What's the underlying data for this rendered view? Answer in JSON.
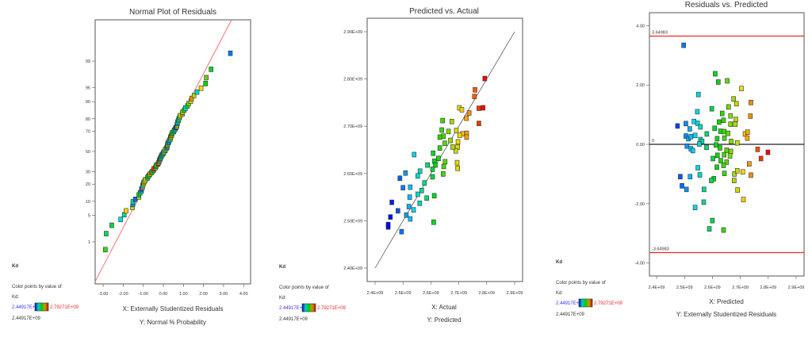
{
  "legend": {
    "heading": "Kd",
    "caption": "Color points by value of",
    "var": "Kd:",
    "min_label": "2.44917E+09",
    "max_label": "2.79271E+09",
    "current": "2.44917E+09",
    "min_value": 2449170000,
    "max_value": 2792710000,
    "colors": [
      "#0000ff",
      "#00ffff",
      "#00ff00",
      "#ffff00",
      "#ff0000"
    ]
  },
  "chart_data": [
    {
      "type": "scatter",
      "title": "Normal Plot of Residuals",
      "xlabel": "X: Externally Studentized Residuals",
      "ylabel": "Y: Normal % Probability",
      "xlim": [
        -3.2,
        4.2
      ],
      "x_ticks": [
        "-3.00",
        "-2.00",
        "-1.00",
        "0.00",
        "1.00",
        "2.00",
        "3.00",
        "4.00"
      ],
      "x_tick_values": [
        -3,
        -2,
        -1,
        0,
        1,
        2,
        3,
        4
      ],
      "y_ticks": [
        "1",
        "5",
        "10",
        "20",
        "30",
        "50",
        "70",
        "80",
        "90",
        "95",
        "99"
      ],
      "y_tick_values": [
        1,
        5,
        10,
        20,
        30,
        50,
        70,
        80,
        90,
        95,
        99
      ],
      "reference_line_color": "#ff6666",
      "points_note": "residuals of the Residuals vs. Predicted series, ranked"
    },
    {
      "type": "scatter",
      "title": "Predicted vs. Actual",
      "xlabel": "X: Actual",
      "ylabel": "Y: Predicted",
      "xlim": [
        2.4,
        2.9
      ],
      "ylim": [
        2.4,
        2.9
      ],
      "x_ticks": [
        "2.4E+09",
        "2.5E+09",
        "2.6E+09",
        "2.7E+09",
        "2.8E+09",
        "2.9E+09"
      ],
      "y_ticks": [
        "2.40E+09",
        "2.50E+09",
        "2.60E+09",
        "2.70E+09",
        "2.80E+09",
        "2.90E+09"
      ],
      "unit_scale": 1000000000,
      "points": [
        [
          2.793,
          2.801
        ],
        [
          2.758,
          2.777
        ],
        [
          2.756,
          2.763
        ],
        [
          2.787,
          2.739
        ],
        [
          2.772,
          2.738
        ],
        [
          2.772,
          2.706
        ],
        [
          2.702,
          2.739
        ],
        [
          2.711,
          2.735
        ],
        [
          2.737,
          2.728
        ],
        [
          2.727,
          2.717
        ],
        [
          2.728,
          2.685
        ],
        [
          2.728,
          2.677
        ],
        [
          2.713,
          2.684
        ],
        [
          2.703,
          2.681
        ],
        [
          2.691,
          2.691
        ],
        [
          2.697,
          2.667
        ],
        [
          2.696,
          2.656
        ],
        [
          2.689,
          2.648
        ],
        [
          2.694,
          2.623
        ],
        [
          2.696,
          2.611
        ],
        [
          2.675,
          2.71
        ],
        [
          2.642,
          2.712
        ],
        [
          2.639,
          2.692
        ],
        [
          2.663,
          2.689
        ],
        [
          2.645,
          2.679
        ],
        [
          2.632,
          2.677
        ],
        [
          2.67,
          2.67
        ],
        [
          2.65,
          2.664
        ],
        [
          2.678,
          2.656
        ],
        [
          2.632,
          2.654
        ],
        [
          2.608,
          2.643
        ],
        [
          2.627,
          2.632
        ],
        [
          2.613,
          2.626
        ],
        [
          2.651,
          2.625
        ],
        [
          2.588,
          2.618
        ],
        [
          2.616,
          2.618
        ],
        [
          2.606,
          2.609
        ],
        [
          2.646,
          2.615
        ],
        [
          2.644,
          2.599
        ],
        [
          2.606,
          2.593
        ],
        [
          2.54,
          2.64
        ],
        [
          2.561,
          2.605
        ],
        [
          2.553,
          2.595
        ],
        [
          2.509,
          2.601
        ],
        [
          2.489,
          2.59
        ],
        [
          2.5,
          2.57
        ],
        [
          2.526,
          2.571
        ],
        [
          2.577,
          2.58
        ],
        [
          2.524,
          2.55
        ],
        [
          2.553,
          2.556
        ],
        [
          2.567,
          2.564
        ],
        [
          2.585,
          2.548
        ],
        [
          2.612,
          2.553
        ],
        [
          2.56,
          2.537
        ],
        [
          2.521,
          2.53
        ],
        [
          2.538,
          2.523
        ],
        [
          2.512,
          2.512
        ],
        [
          2.526,
          2.504
        ],
        [
          2.482,
          2.521
        ],
        [
          2.46,
          2.539
        ],
        [
          2.455,
          2.508
        ],
        [
          2.447,
          2.492
        ],
        [
          2.447,
          2.487
        ],
        [
          2.495,
          2.477
        ],
        [
          2.61,
          2.497
        ]
      ]
    },
    {
      "type": "scatter",
      "title": "Residuals vs. Predicted",
      "xlabel": "X: Predicted",
      "ylabel": "Y: Externally Studentized Residuals",
      "xlim": [
        2.4,
        2.9
      ],
      "ylim": [
        -4,
        4
      ],
      "x_ticks": [
        "2.4E+09",
        "2.5E+09",
        "2.6E+09",
        "2.7E+09",
        "2.8E+09",
        "2.9E+09"
      ],
      "y_ticks": [
        "-4.00",
        "-2.00",
        "0.00",
        "2.00",
        "4.00"
      ],
      "y_tick_values": [
        -4,
        -2,
        0,
        2,
        4
      ],
      "limit_upper": 3.64983,
      "limit_upper_label": "3.64983",
      "limit_lower": -3.64983,
      "limit_lower_label": "-3.64983",
      "zero_label": "0",
      "limit_color": "#ff2222",
      "points": [
        [
          2.497,
          3.34
        ],
        [
          2.61,
          2.38
        ],
        [
          2.621,
          2.1
        ],
        [
          2.653,
          2.14
        ],
        [
          2.704,
          1.88
        ],
        [
          2.55,
          1.68
        ],
        [
          2.676,
          1.53
        ],
        [
          2.686,
          1.37
        ],
        [
          2.738,
          1.41
        ],
        [
          2.736,
          0.95
        ],
        [
          2.598,
          1.2
        ],
        [
          2.546,
          1.1
        ],
        [
          2.658,
          1.26
        ],
        [
          2.635,
          1.04
        ],
        [
          2.665,
          0.96
        ],
        [
          2.64,
          0.81
        ],
        [
          2.684,
          0.84
        ],
        [
          2.682,
          0.68
        ],
        [
          2.665,
          0.68
        ],
        [
          2.624,
          0.75
        ],
        [
          2.534,
          0.77
        ],
        [
          2.547,
          0.71
        ],
        [
          2.505,
          0.7
        ],
        [
          2.475,
          0.62
        ],
        [
          2.557,
          0.59
        ],
        [
          2.519,
          0.52
        ],
        [
          2.608,
          0.54
        ],
        [
          2.629,
          0.44
        ],
        [
          2.642,
          0.43
        ],
        [
          2.656,
          0.37
        ],
        [
          2.58,
          0.35
        ],
        [
          2.717,
          0.35
        ],
        [
          2.726,
          0.41
        ],
        [
          2.725,
          0.21
        ],
        [
          2.505,
          0.28
        ],
        [
          2.538,
          0.3
        ],
        [
          2.514,
          0.19
        ],
        [
          2.523,
          0.26
        ],
        [
          2.557,
          0.16
        ],
        [
          2.563,
          0.1
        ],
        [
          2.553,
          0.01
        ],
        [
          2.617,
          0.19
        ],
        [
          2.643,
          0.21
        ],
        [
          2.667,
          0.1
        ],
        [
          2.689,
          0.05
        ],
        [
          2.613,
          -0.02
        ],
        [
          2.509,
          -0.06
        ],
        [
          2.523,
          -0.15
        ],
        [
          2.53,
          -0.21
        ],
        [
          2.579,
          -0.1
        ],
        [
          2.627,
          -0.12
        ],
        [
          2.651,
          -0.2
        ],
        [
          2.666,
          -0.24
        ],
        [
          2.618,
          -0.37
        ],
        [
          2.642,
          -0.35
        ],
        [
          2.663,
          -0.39
        ],
        [
          2.602,
          -0.48
        ],
        [
          2.63,
          -0.55
        ],
        [
          2.651,
          -0.6
        ],
        [
          2.64,
          -0.71
        ],
        [
          2.762,
          -0.17
        ],
        [
          2.799,
          -0.27
        ],
        [
          2.774,
          -0.48
        ],
        [
          2.732,
          -0.66
        ],
        [
          2.616,
          -0.77
        ],
        [
          2.548,
          -0.79
        ],
        [
          2.555,
          -1.03
        ],
        [
          2.643,
          -0.98
        ],
        [
          2.679,
          -1.0
        ],
        [
          2.689,
          -0.89
        ],
        [
          2.709,
          -0.93
        ],
        [
          2.738,
          -1.04
        ],
        [
          2.678,
          -1.22
        ],
        [
          2.605,
          -1.16
        ],
        [
          2.596,
          -1.22
        ],
        [
          2.52,
          -1.09
        ],
        [
          2.485,
          -1.09
        ],
        [
          2.491,
          -1.4
        ],
        [
          2.507,
          -1.52
        ],
        [
          2.57,
          -1.52
        ],
        [
          2.69,
          -1.54
        ],
        [
          2.711,
          -1.86
        ],
        [
          2.569,
          -1.95
        ],
        [
          2.538,
          -2.13
        ],
        [
          2.6,
          -2.57
        ],
        [
          2.589,
          -2.85
        ],
        [
          2.64,
          -2.89
        ]
      ]
    }
  ]
}
